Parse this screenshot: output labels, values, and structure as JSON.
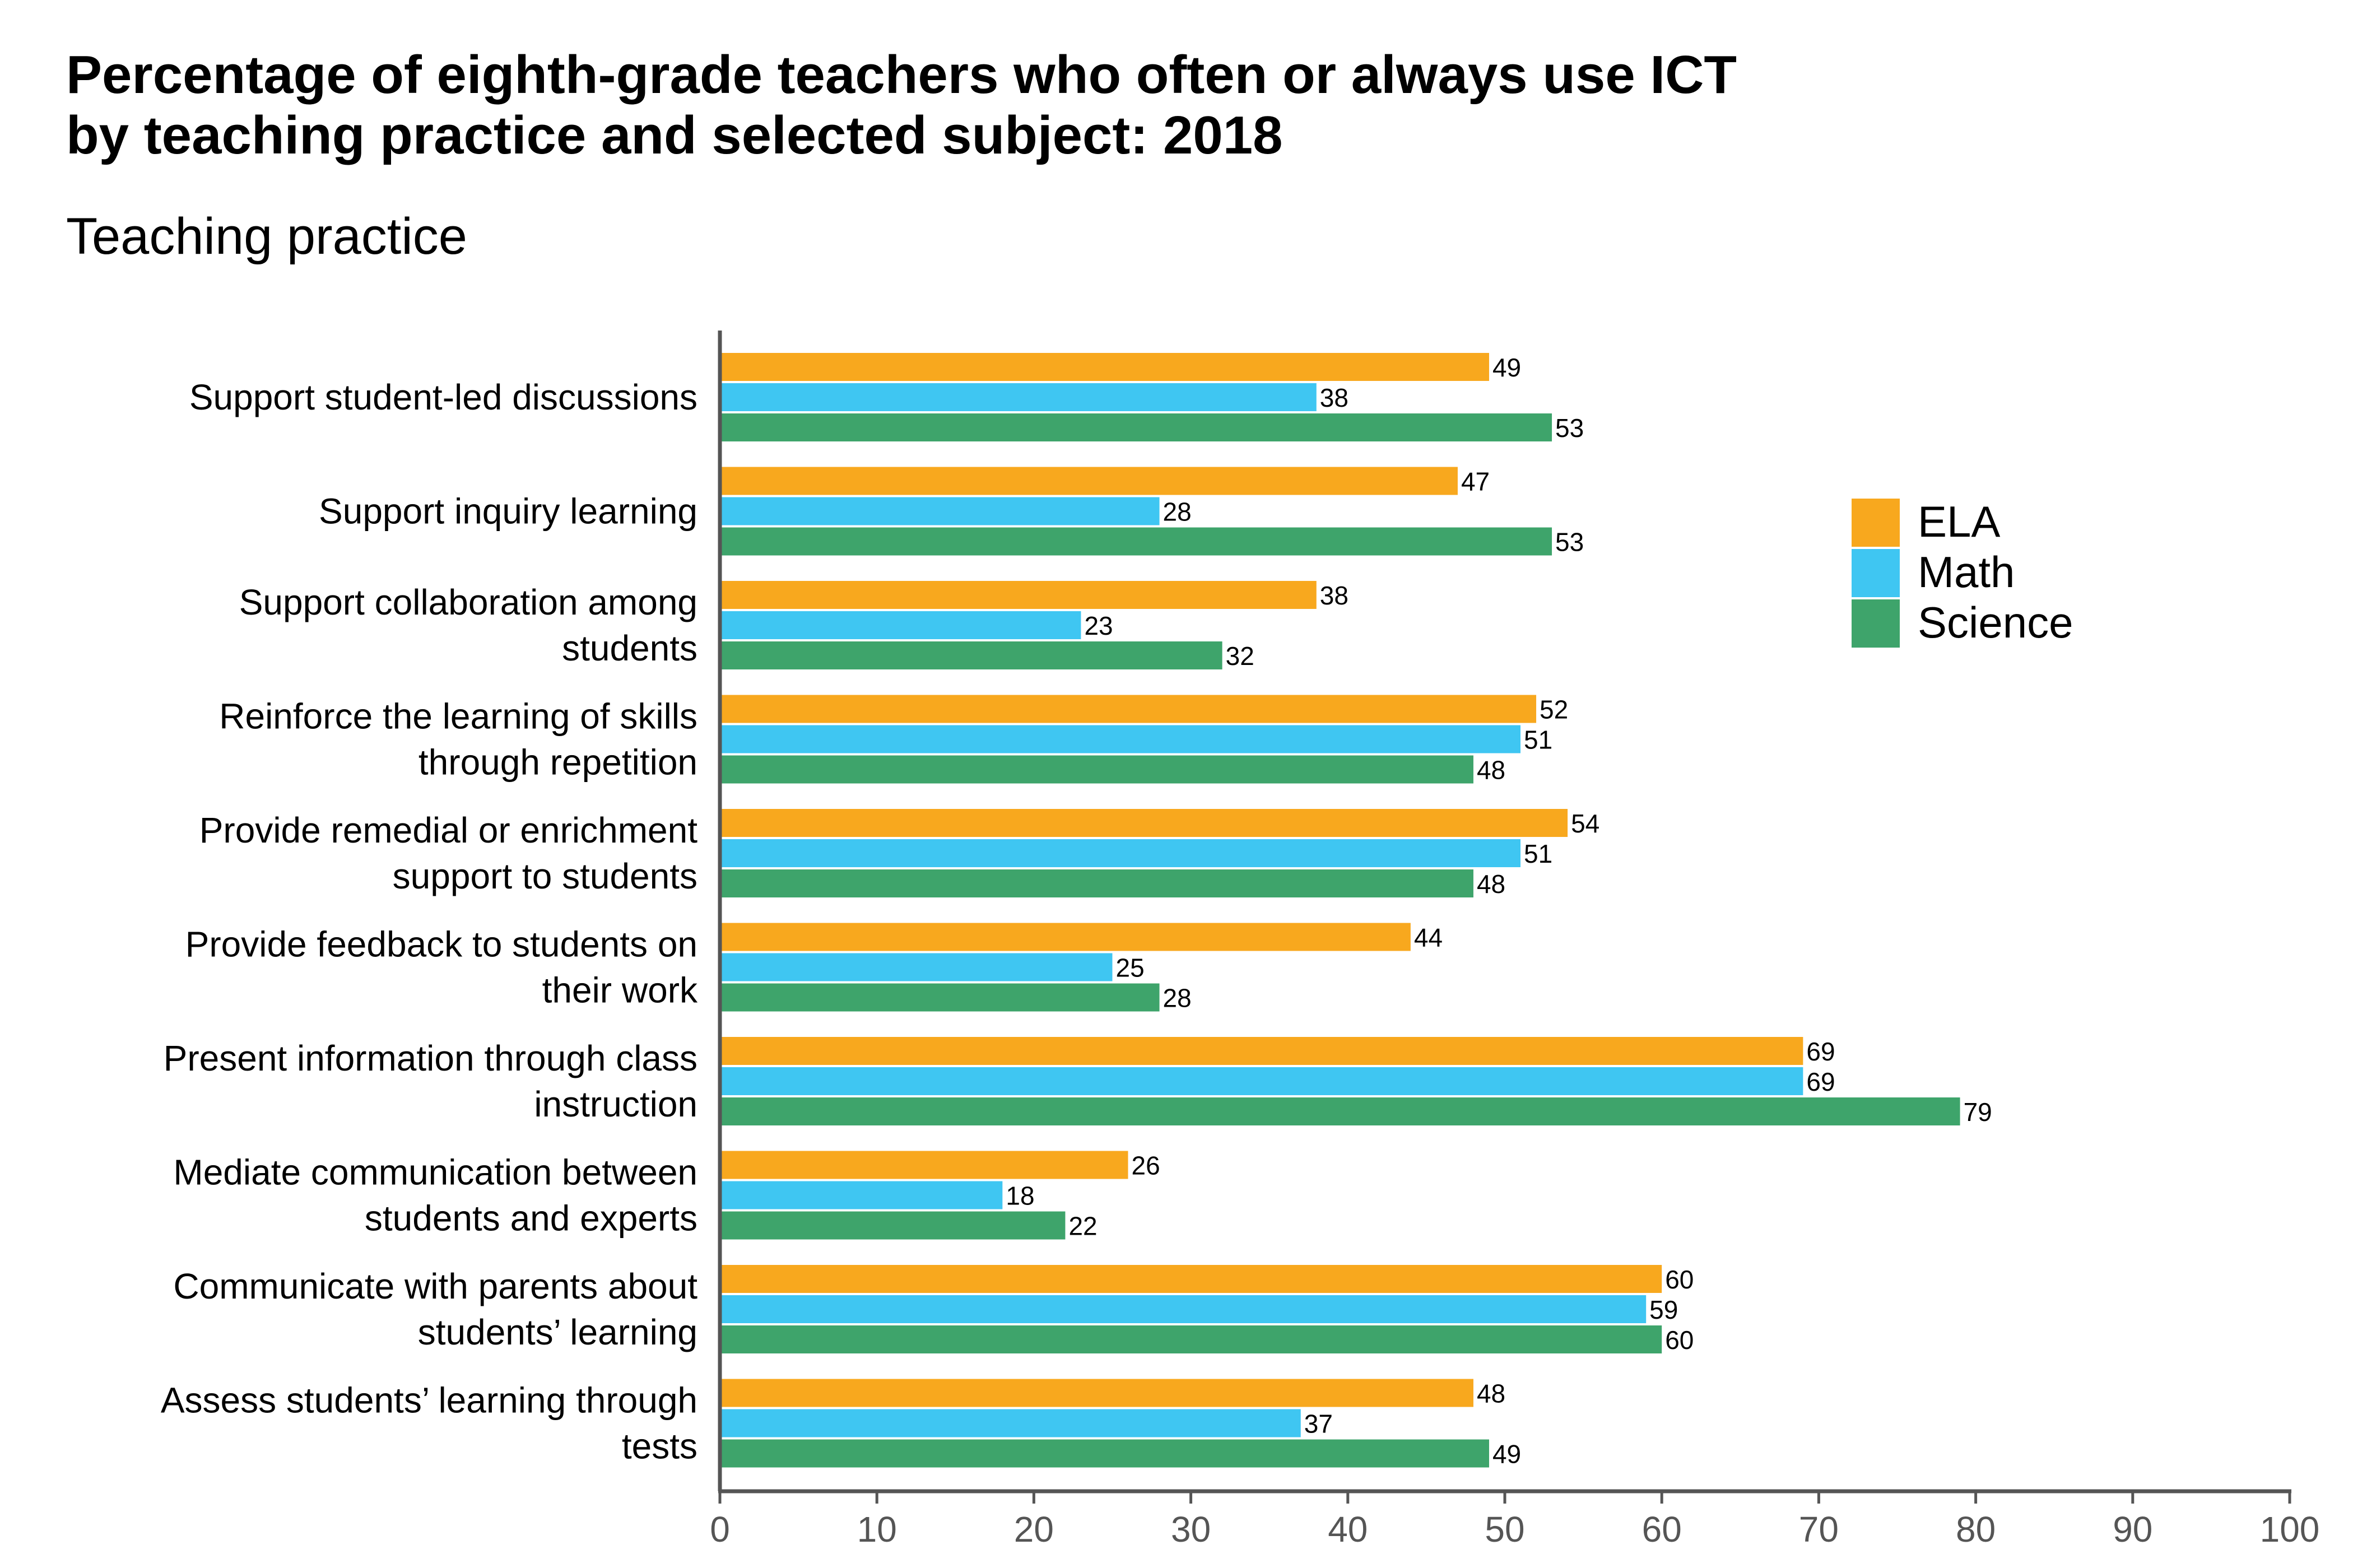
{
  "chart_data": {
    "type": "bar",
    "orientation": "horizontal",
    "title": [
      "Percentage of eighth-grade teachers who often or always use ICT",
      "by teaching practice and selected subject: 2018"
    ],
    "subtitle": "Teaching practice",
    "xlabel": "",
    "ylabel": "Teaching practice",
    "xlim": [
      0,
      100
    ],
    "xticks": [
      0,
      10,
      20,
      30,
      40,
      50,
      60,
      70,
      80,
      90,
      100
    ],
    "grid": false,
    "legend_position": "right",
    "categories": [
      [
        "Support student-led discussions"
      ],
      [
        "Support inquiry learning"
      ],
      [
        "Support collaboration among",
        "students"
      ],
      [
        "Reinforce the learning of skills",
        "through repetition"
      ],
      [
        "Provide remedial or enrichment",
        "support to students"
      ],
      [
        "Provide feedback to students on",
        "their work"
      ],
      [
        "Present information through class",
        "instruction"
      ],
      [
        "Mediate communication between",
        "students and experts"
      ],
      [
        "Communicate with parents about",
        "students’ learning"
      ],
      [
        "Assess students’ learning through",
        "tests"
      ]
    ],
    "series": [
      {
        "name": "ELA",
        "color": "#F8A81E",
        "values": [
          49,
          47,
          38,
          52,
          54,
          44,
          69,
          26,
          60,
          48
        ]
      },
      {
        "name": "Math",
        "color": "#3FC6F2",
        "values": [
          38,
          28,
          23,
          51,
          51,
          25,
          69,
          18,
          59,
          37
        ]
      },
      {
        "name": "Science",
        "color": "#3EA46B",
        "values": [
          53,
          53,
          32,
          48,
          48,
          28,
          79,
          22,
          60,
          49
        ]
      }
    ]
  }
}
